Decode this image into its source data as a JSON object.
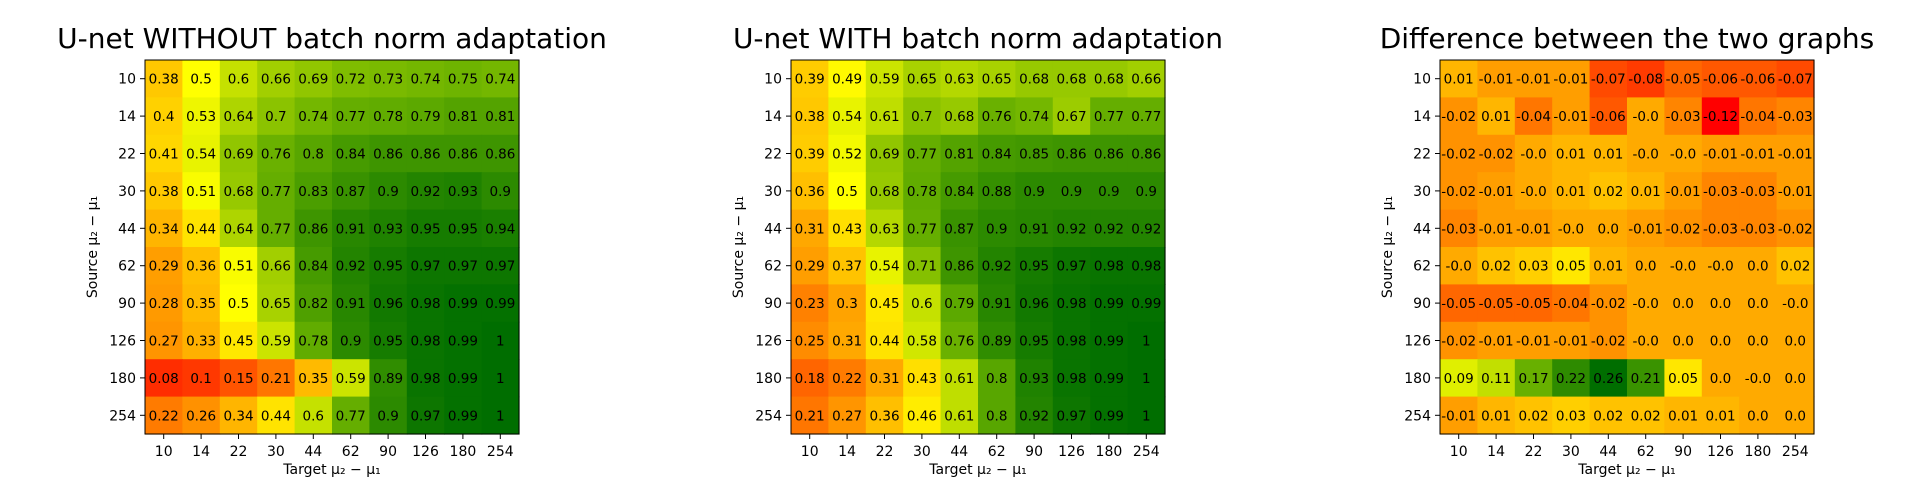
{
  "chart_data": [
    {
      "type": "heatmap",
      "title": "U-net WITHOUT batch norm adaptation",
      "xlabel": "Target μ₂ − μ₁",
      "ylabel": "Source μ₂ − μ₁",
      "x_categories": [
        "10",
        "14",
        "22",
        "30",
        "44",
        "62",
        "90",
        "126",
        "180",
        "254"
      ],
      "y_categories": [
        "10",
        "14",
        "22",
        "30",
        "44",
        "62",
        "90",
        "126",
        "180",
        "254"
      ],
      "values": [
        [
          0.38,
          0.5,
          0.6,
          0.66,
          0.69,
          0.72,
          0.73,
          0.74,
          0.75,
          0.74
        ],
        [
          0.4,
          0.53,
          0.64,
          0.7,
          0.74,
          0.77,
          0.78,
          0.79,
          0.81,
          0.81
        ],
        [
          0.41,
          0.54,
          0.69,
          0.76,
          0.8,
          0.84,
          0.86,
          0.86,
          0.86,
          0.86
        ],
        [
          0.38,
          0.51,
          0.68,
          0.77,
          0.83,
          0.87,
          0.9,
          0.92,
          0.93,
          0.9
        ],
        [
          0.34,
          0.44,
          0.64,
          0.77,
          0.86,
          0.91,
          0.93,
          0.95,
          0.95,
          0.94
        ],
        [
          0.29,
          0.36,
          0.51,
          0.66,
          0.84,
          0.92,
          0.95,
          0.97,
          0.97,
          0.97
        ],
        [
          0.28,
          0.35,
          0.5,
          0.65,
          0.82,
          0.91,
          0.96,
          0.98,
          0.99,
          0.99
        ],
        [
          0.27,
          0.33,
          0.45,
          0.59,
          0.78,
          0.9,
          0.95,
          0.98,
          0.99,
          1.0
        ],
        [
          0.08,
          0.1,
          0.15,
          0.21,
          0.35,
          0.59,
          0.89,
          0.98,
          0.99,
          1.0
        ],
        [
          0.22,
          0.26,
          0.34,
          0.44,
          0.6,
          0.77,
          0.9,
          0.97,
          0.99,
          1.0
        ]
      ],
      "value_range": [
        0,
        1
      ],
      "colormap": "red-yellow-green"
    },
    {
      "type": "heatmap",
      "title": "U-net WITH batch norm adaptation",
      "xlabel": "Target μ₂ − μ₁",
      "ylabel": "Source μ₂ − μ₁",
      "x_categories": [
        "10",
        "14",
        "22",
        "30",
        "44",
        "62",
        "90",
        "126",
        "180",
        "254"
      ],
      "y_categories": [
        "10",
        "14",
        "22",
        "30",
        "44",
        "62",
        "90",
        "126",
        "180",
        "254"
      ],
      "values": [
        [
          0.39,
          0.49,
          0.59,
          0.65,
          0.63,
          0.65,
          0.68,
          0.68,
          0.68,
          0.66
        ],
        [
          0.38,
          0.54,
          0.61,
          0.7,
          0.68,
          0.76,
          0.74,
          0.67,
          0.77,
          0.77
        ],
        [
          0.39,
          0.52,
          0.69,
          0.77,
          0.81,
          0.84,
          0.85,
          0.86,
          0.86,
          0.86
        ],
        [
          0.36,
          0.5,
          0.68,
          0.78,
          0.84,
          0.88,
          0.9,
          0.9,
          0.9,
          0.9
        ],
        [
          0.31,
          0.43,
          0.63,
          0.77,
          0.87,
          0.9,
          0.91,
          0.92,
          0.92,
          0.92
        ],
        [
          0.29,
          0.37,
          0.54,
          0.71,
          0.86,
          0.92,
          0.95,
          0.97,
          0.98,
          0.98
        ],
        [
          0.23,
          0.3,
          0.45,
          0.6,
          0.79,
          0.91,
          0.96,
          0.98,
          0.99,
          0.99
        ],
        [
          0.25,
          0.31,
          0.44,
          0.58,
          0.76,
          0.89,
          0.95,
          0.98,
          0.99,
          1.0
        ],
        [
          0.18,
          0.22,
          0.31,
          0.43,
          0.61,
          0.8,
          0.93,
          0.98,
          0.99,
          1.0
        ],
        [
          0.21,
          0.27,
          0.36,
          0.46,
          0.61,
          0.8,
          0.92,
          0.97,
          0.99,
          1.0
        ]
      ],
      "value_range": [
        0,
        1
      ],
      "colormap": "red-yellow-green"
    },
    {
      "type": "heatmap",
      "title": "Difference between the two graphs",
      "xlabel": "Target μ₂ − μ₁",
      "ylabel": "Source μ₂ − μ₁",
      "x_categories": [
        "10",
        "14",
        "22",
        "30",
        "44",
        "62",
        "90",
        "126",
        "180",
        "254"
      ],
      "y_categories": [
        "10",
        "14",
        "22",
        "30",
        "44",
        "62",
        "90",
        "126",
        "180",
        "254"
      ],
      "values": [
        [
          "0.01",
          "-0.01",
          "-0.01",
          "-0.01",
          "-0.07",
          "-0.08",
          "-0.05",
          "-0.06",
          "-0.06",
          "-0.07"
        ],
        [
          "-0.02",
          "0.01",
          "-0.04",
          "-0.01",
          "-0.06",
          "-0.0",
          "-0.03",
          "-0.12",
          "-0.04",
          "-0.03"
        ],
        [
          "-0.02",
          "-0.02",
          "-0.0",
          "0.01",
          "0.01",
          "-0.0",
          "-0.0",
          "-0.01",
          "-0.01",
          "-0.01"
        ],
        [
          "-0.02",
          "-0.01",
          "-0.0",
          "0.01",
          "0.02",
          "0.01",
          "-0.01",
          "-0.03",
          "-0.03",
          "-0.01"
        ],
        [
          "-0.03",
          "-0.01",
          "-0.01",
          "-0.0",
          "0.0",
          "-0.01",
          "-0.02",
          "-0.03",
          "-0.03",
          "-0.02"
        ],
        [
          "-0.0",
          "0.02",
          "0.03",
          "0.05",
          "0.01",
          "0.0",
          "-0.0",
          "-0.0",
          "0.0",
          "0.02"
        ],
        [
          "-0.05",
          "-0.05",
          "-0.05",
          "-0.04",
          "-0.02",
          "-0.0",
          "0.0",
          "0.0",
          "0.0",
          "-0.0"
        ],
        [
          "-0.02",
          "-0.01",
          "-0.01",
          "-0.01",
          "-0.02",
          "-0.0",
          "0.0",
          "0.0",
          "0.0",
          "0.0"
        ],
        [
          "0.09",
          "0.11",
          "0.17",
          "0.22",
          "0.26",
          "0.21",
          "0.05",
          "0.0",
          "-0.0",
          "0.0"
        ],
        [
          "-0.01",
          "0.01",
          "0.02",
          "0.03",
          "0.02",
          "0.02",
          "0.01",
          "0.01",
          "0.0",
          "0.0"
        ]
      ],
      "value_range": [
        -0.12,
        0.26
      ],
      "colormap": "red-yellow-green"
    }
  ]
}
